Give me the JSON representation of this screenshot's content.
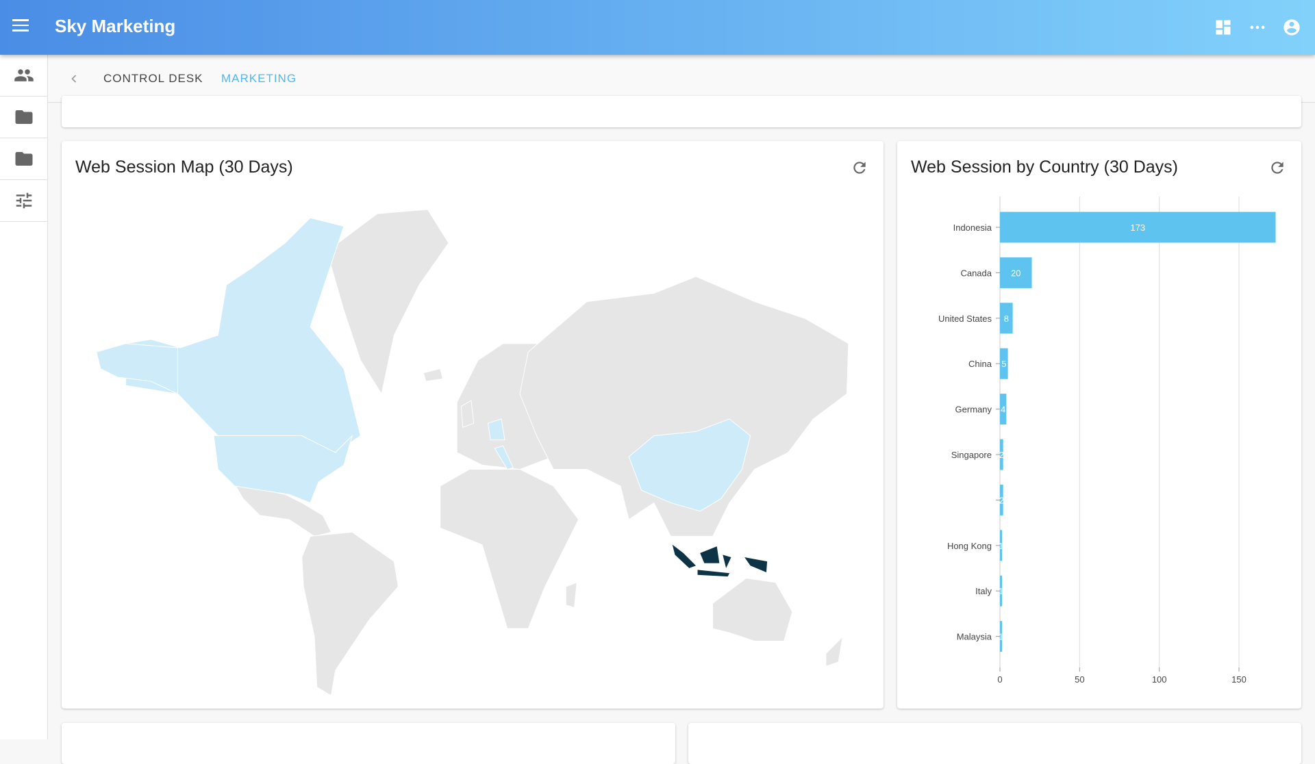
{
  "header": {
    "title": "Sky Marketing",
    "icons": [
      "menu-icon",
      "dashboard-icon",
      "more-horiz-icon",
      "account-circle-icon"
    ]
  },
  "sidebar": {
    "items": [
      {
        "icon": "people-icon"
      },
      {
        "icon": "folder-icon"
      },
      {
        "icon": "folder-icon"
      },
      {
        "icon": "tune-icon"
      }
    ]
  },
  "tabs": [
    {
      "label": "CONTROL DESK"
    },
    {
      "label": "MARKETING",
      "active": true
    }
  ],
  "map_card": {
    "title": "Web Session Map (30 Days)"
  },
  "bar_card": {
    "title": "Web Session by Country (30 Days)"
  },
  "colors": {
    "accent": "#4fb7ec",
    "bar": "#5fc3ef",
    "map_highlight": "#0d3446",
    "map_light": "#cdebf8",
    "map_base": "#e6e6e6"
  },
  "chart_data": {
    "type": "bar",
    "orientation": "horizontal",
    "categories": [
      "Indonesia",
      "Canada",
      "United States",
      "China",
      "Germany",
      "Singapore",
      "",
      "Hong Kong",
      "Italy",
      "Malaysia"
    ],
    "values": [
      173,
      20,
      8,
      5,
      4,
      2,
      2,
      1,
      1,
      1
    ],
    "xticks": [
      0,
      50,
      100,
      150
    ],
    "xlim": [
      0,
      175
    ],
    "grid": true
  }
}
